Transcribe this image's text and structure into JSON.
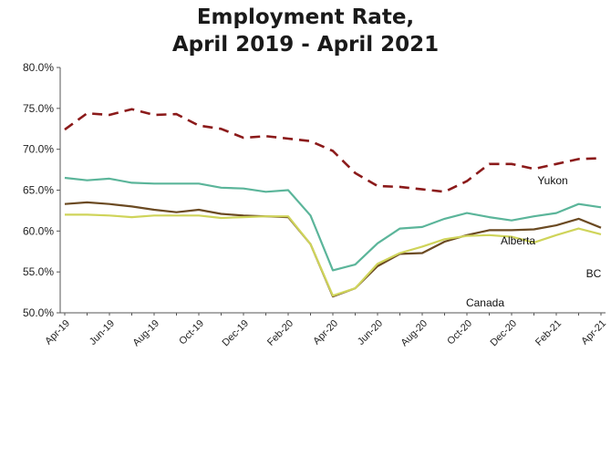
{
  "chart_data": {
    "type": "line",
    "title": [
      "Employment Rate,",
      "April 2019 - April 2021"
    ],
    "xlabel": "",
    "ylabel": "",
    "ylim": [
      50.0,
      80.0
    ],
    "yticks": [
      "50.0%",
      "55.0%",
      "60.0%",
      "65.0%",
      "70.0%",
      "75.0%",
      "80.0%"
    ],
    "ytick_values": [
      50,
      55,
      60,
      65,
      70,
      75,
      80
    ],
    "x": [
      "Apr-19",
      "May-19",
      "Jun-19",
      "Jul-19",
      "Aug-19",
      "Sep-19",
      "Oct-19",
      "Nov-19",
      "Dec-19",
      "Jan-20",
      "Feb-20",
      "Mar-20",
      "Apr-20",
      "May-20",
      "Jun-20",
      "Jul-20",
      "Aug-20",
      "Sep-20",
      "Oct-20",
      "Nov-20",
      "Dec-20",
      "Jan-21",
      "Feb-21",
      "Mar-21",
      "Apr-21"
    ],
    "xtick_labels": [
      "Apr-19",
      "Jun-19",
      "Aug-19",
      "Oct-19",
      "Dec-19",
      "Feb-20",
      "Apr-20",
      "Jun-20",
      "Aug-20",
      "Oct-20",
      "Dec-20",
      "Feb-21",
      "Apr-21"
    ],
    "grid": false,
    "series": [
      {
        "name": "Yukon",
        "color": "#8b1a1a",
        "style": "dashed",
        "values": [
          72.4,
          74.4,
          74.2,
          74.9,
          74.2,
          74.3,
          72.9,
          72.5,
          71.4,
          71.6,
          71.3,
          71.0,
          69.8,
          67.1,
          65.5,
          65.4,
          65.1,
          64.8,
          66.1,
          68.2,
          68.2,
          67.6,
          68.2,
          68.8,
          68.9
        ]
      },
      {
        "name": "Alberta",
        "color": "#5bb59a",
        "style": "solid",
        "values": [
          66.5,
          66.2,
          66.4,
          65.9,
          65.8,
          65.8,
          65.8,
          65.3,
          65.2,
          64.8,
          65.0,
          61.9,
          55.2,
          55.9,
          58.5,
          60.3,
          60.5,
          61.5,
          62.2,
          61.7,
          61.3,
          61.8,
          62.2,
          63.3,
          62.9
        ]
      },
      {
        "name": "BC",
        "color": "#6b4a22",
        "style": "solid",
        "values": [
          63.3,
          63.5,
          63.3,
          63.0,
          62.6,
          62.3,
          62.6,
          62.1,
          61.9,
          61.8,
          61.7,
          58.4,
          52.0,
          53.0,
          55.7,
          57.2,
          57.3,
          58.7,
          59.5,
          60.1,
          60.1,
          60.2,
          60.7,
          61.5,
          60.4
        ]
      },
      {
        "name": "Canada",
        "color": "#cfd45a",
        "style": "solid",
        "values": [
          62.0,
          62.0,
          61.9,
          61.7,
          61.9,
          61.9,
          61.9,
          61.6,
          61.7,
          61.8,
          61.8,
          58.4,
          52.1,
          53.0,
          56.0,
          57.3,
          58.1,
          59.0,
          59.4,
          59.5,
          59.3,
          58.6,
          59.5,
          60.3,
          59.6
        ]
      }
    ]
  }
}
